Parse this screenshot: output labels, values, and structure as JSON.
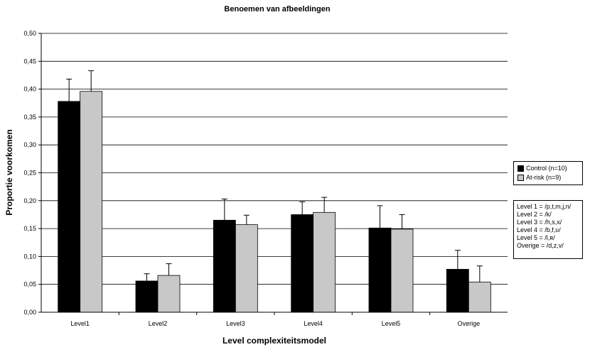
{
  "chart_data": {
    "type": "bar",
    "title": "Benoemen van afbeeldingen",
    "xlabel": "Level complexiteitsmodel",
    "ylabel": "Proportie voorkomen",
    "categories": [
      "Level1",
      "Level2",
      "Level3",
      "Level4",
      "Level5",
      "Overige"
    ],
    "ylim": [
      0,
      0.5
    ],
    "yticks": [
      "0,00",
      "0,05",
      "0,10",
      "0,15",
      "0,20",
      "0,25",
      "0,30",
      "0,35",
      "0,40",
      "0,45",
      "0,50"
    ],
    "grid": true,
    "legend_position": "right",
    "series": [
      {
        "name": "Control (n=10)",
        "color": "#000000",
        "values": [
          0.378,
          0.056,
          0.165,
          0.175,
          0.151,
          0.077
        ],
        "error_upper": [
          0.418,
          0.069,
          0.203,
          0.198,
          0.191,
          0.111
        ]
      },
      {
        "name": "At-risk (n=9)",
        "color": "#c8c8c8",
        "values": [
          0.396,
          0.066,
          0.157,
          0.179,
          0.149,
          0.054
        ],
        "error_upper": [
          0.433,
          0.087,
          0.174,
          0.206,
          0.175,
          0.083
        ]
      }
    ],
    "notes": [
      "Level 1 = /p,t,m,j,n/",
      "Level 2 = /k/",
      "Level 3 = /h,s,x/",
      "Level 4 = /b,f,ʋ/",
      "Level 5 = /l,ʀ/",
      "Overige = /d,z,v/"
    ]
  }
}
